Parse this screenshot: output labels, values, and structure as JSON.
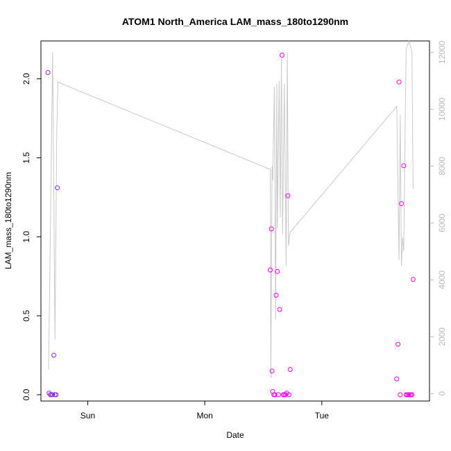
{
  "chart_data": {
    "type": "scatter",
    "title": "ATOM1 North_America LAM_mass_180to1290nm",
    "xlabel": "Date",
    "ylabel": "LAM_mass_180to1290nm",
    "x_ticks": [
      {
        "label": "Sun",
        "x": 1.0
      },
      {
        "label": "Mon",
        "x": 2.0
      },
      {
        "label": "Tue",
        "x": 3.0
      }
    ],
    "xlim": [
      0.6,
      3.92
    ],
    "ylim": [
      -0.04,
      2.24
    ],
    "y_ticks": [
      0.0,
      0.5,
      1.0,
      1.5,
      2.0
    ],
    "y2lim": [
      -260,
      12400
    ],
    "y2_ticks": [
      0,
      2000,
      4000,
      6000,
      8000,
      10000,
      12000
    ],
    "colors": {
      "grey_line": "#c8c8c8",
      "purple": "#8a2be2",
      "magenta": "#ee00ee",
      "axis": "#000000",
      "axis_right": "#b8b8b8"
    },
    "series": [
      {
        "kind": "points",
        "points": [
          {
            "x": 0.66,
            "y": 2.04,
            "c": "#8a2be2"
          },
          {
            "x": 0.67,
            "y": 0.01,
            "c": "#8a2be2"
          },
          {
            "x": 0.68,
            "y": 0.0,
            "c": "#8a2be2"
          },
          {
            "x": 0.69,
            "y": 0.0,
            "c": "#8a2be2"
          },
          {
            "x": 0.7,
            "y": 0.0,
            "c": "#8a2be2"
          },
          {
            "x": 0.71,
            "y": 0.25,
            "c": "#8a2be2"
          },
          {
            "x": 0.72,
            "y": 0.0,
            "c": "#8a2be2"
          },
          {
            "x": 0.73,
            "y": 0.0,
            "c": "#8a2be2"
          },
          {
            "x": 0.74,
            "y": 1.31,
            "c": "#8a2be2"
          },
          {
            "x": 2.56,
            "y": 0.79,
            "c": "#ee00ee"
          },
          {
            "x": 2.57,
            "y": 1.05,
            "c": "#ee00ee"
          },
          {
            "x": 2.575,
            "y": 0.15,
            "c": "#ee00ee"
          },
          {
            "x": 2.58,
            "y": 0.02,
            "c": "#ee00ee"
          },
          {
            "x": 2.59,
            "y": 0.0,
            "c": "#ee00ee"
          },
          {
            "x": 2.6,
            "y": 0.0,
            "c": "#ee00ee"
          },
          {
            "x": 2.61,
            "y": 0.63,
            "c": "#ee00ee"
          },
          {
            "x": 2.62,
            "y": 0.78,
            "c": "#ee00ee"
          },
          {
            "x": 2.63,
            "y": 0.0,
            "c": "#ee00ee"
          },
          {
            "x": 2.64,
            "y": 0.54,
            "c": "#ee00ee"
          },
          {
            "x": 2.66,
            "y": 2.15,
            "c": "#ee00ee"
          },
          {
            "x": 2.67,
            "y": 0.0,
            "c": "#ee00ee"
          },
          {
            "x": 2.68,
            "y": 0.0,
            "c": "#ee00ee"
          },
          {
            "x": 2.69,
            "y": 0.0,
            "c": "#ee00ee"
          },
          {
            "x": 2.7,
            "y": 0.01,
            "c": "#ee00ee"
          },
          {
            "x": 2.71,
            "y": 1.26,
            "c": "#ee00ee"
          },
          {
            "x": 2.72,
            "y": 0.0,
            "c": "#ee00ee"
          },
          {
            "x": 2.73,
            "y": 0.16,
            "c": "#ee00ee"
          },
          {
            "x": 3.64,
            "y": 0.1,
            "c": "#ee00ee"
          },
          {
            "x": 3.65,
            "y": 0.32,
            "c": "#ee00ee"
          },
          {
            "x": 3.66,
            "y": 1.98,
            "c": "#ee00ee"
          },
          {
            "x": 3.67,
            "y": 0.0,
            "c": "#ee00ee"
          },
          {
            "x": 3.68,
            "y": 1.21,
            "c": "#ee00ee"
          },
          {
            "x": 3.7,
            "y": 1.45,
            "c": "#ee00ee"
          },
          {
            "x": 3.72,
            "y": 0.0,
            "c": "#ee00ee"
          },
          {
            "x": 3.73,
            "y": 0.0,
            "c": "#ee00ee"
          },
          {
            "x": 3.74,
            "y": 0.0,
            "c": "#ee00ee"
          },
          {
            "x": 3.75,
            "y": 0.0,
            "c": "#ee00ee"
          },
          {
            "x": 3.76,
            "y": 0.0,
            "c": "#ee00ee"
          },
          {
            "x": 3.77,
            "y": 0.0,
            "c": "#ee00ee"
          },
          {
            "x": 3.78,
            "y": 0.73,
            "c": "#ee00ee"
          }
        ]
      },
      {
        "kind": "line",
        "axis": "right",
        "color": "#c8c8c8",
        "x": [
          0.665,
          0.7,
          0.72,
          0.735,
          0.745,
          2.55,
          2.56,
          2.565,
          2.575,
          2.58,
          2.595,
          2.605,
          2.615,
          2.62,
          2.635,
          2.645,
          2.655,
          2.665,
          2.68,
          2.695,
          2.705,
          2.715,
          2.73,
          2.735,
          3.64,
          3.66,
          3.67,
          3.68,
          3.69,
          3.7,
          3.72,
          3.745,
          3.77,
          3.78
        ],
        "y": [
          850,
          12000,
          1900,
          9200,
          10950,
          7900,
          7900,
          550,
          8000,
          7500,
          10800,
          2600,
          10900,
          5800,
          11000,
          6200,
          11800,
          5600,
          10900,
          4500,
          12000,
          5200,
          5700,
          5700,
          10100,
          4700,
          9800,
          4500,
          5500,
          5000,
          12100,
          12400,
          12000,
          7200
        ]
      }
    ]
  }
}
